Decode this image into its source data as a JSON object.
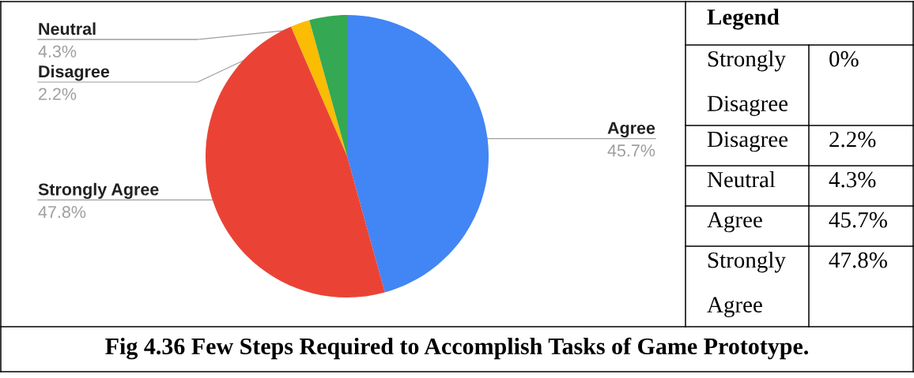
{
  "chart_data": {
    "type": "pie",
    "title": "Fig 4.36 Few Steps Required to Accomplish Tasks of Game Prototype.",
    "legend_title": "Legend",
    "categories": [
      "Strongly Disagree",
      "Disagree",
      "Neutral",
      "Agree",
      "Strongly Agree"
    ],
    "values": [
      0,
      2.2,
      4.3,
      45.7,
      47.8
    ],
    "colors": [
      null,
      "#fbbc04",
      "#34a853",
      "#4285f4",
      "#ea4335"
    ],
    "value_labels": [
      "0%",
      "2.2%",
      "4.3%",
      "45.7%",
      "47.8%"
    ]
  }
}
